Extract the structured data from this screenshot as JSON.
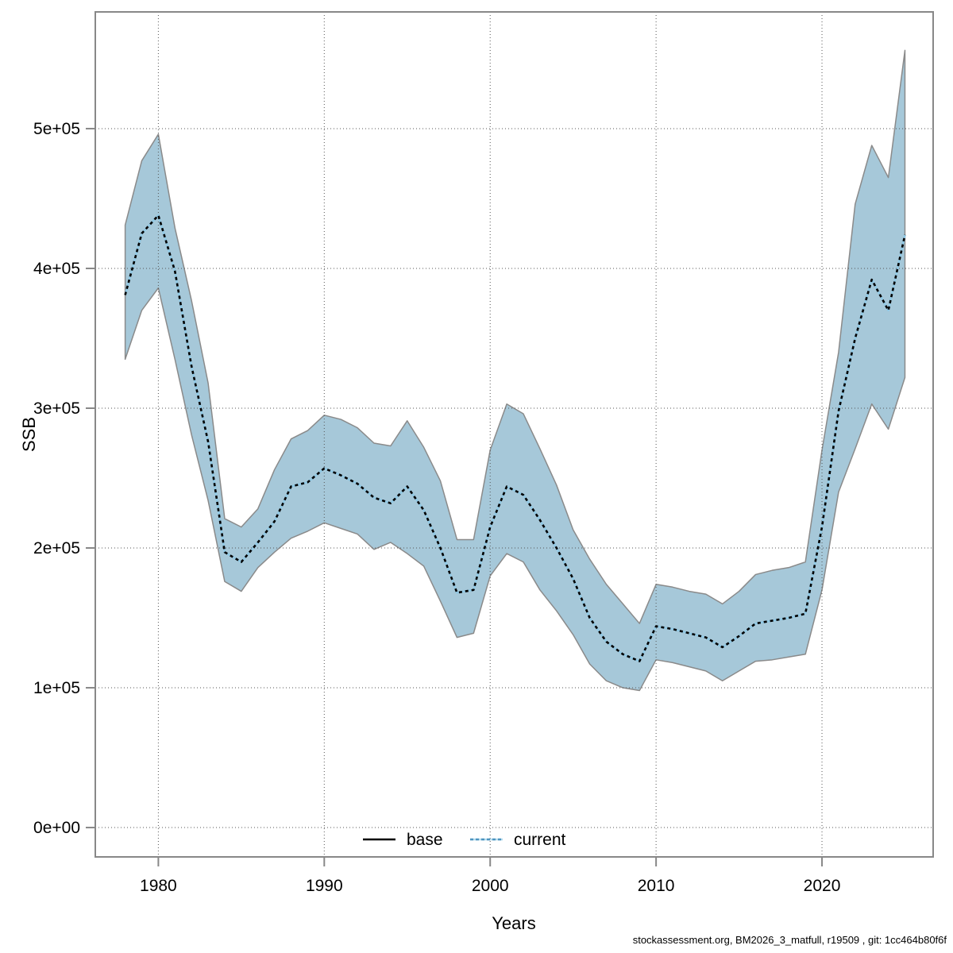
{
  "page": {
    "background": "#ffffff"
  },
  "labels": {
    "x_axis": "Years",
    "y_axis": "SSB"
  },
  "footer": {
    "text": "stockassessment.org, BM2026_3_matfull, r19509 , git: 1cc464b80f6f"
  },
  "colors": {
    "band_fill": "#a6c8d9",
    "band_border": "#8a8a8a",
    "median_dash": "#000000",
    "median_under": "#90c8e4",
    "grid": "#555555",
    "frame": "#888888",
    "legend_base": "#000000",
    "legend_current": "#4e94bf",
    "legend_current_under": "#b6dcee"
  },
  "legend": {
    "items": [
      {
        "label": "base",
        "line": "solid",
        "color": "#000000"
      },
      {
        "label": "current",
        "line": "dotted",
        "color": "#4e94bf"
      }
    ]
  },
  "chart_data": {
    "type": "line",
    "subtype": "median-with-confidence-ribbon",
    "title": "",
    "xlabel": "Years",
    "ylabel": "SSB",
    "grid": true,
    "legend_position": "bottom-center",
    "xlim": [
      1976.2,
      2026.7
    ],
    "ylim": [
      -21000,
      583500
    ],
    "x_ticks": {
      "values": [
        1980,
        1990,
        2000,
        2010,
        2020
      ],
      "labels": [
        "1980",
        "1990",
        "2000",
        "2010",
        "2020"
      ]
    },
    "y_ticks": {
      "values": [
        0,
        100000,
        200000,
        300000,
        400000,
        500000
      ],
      "labels": [
        "0e+00",
        "1e+05",
        "2e+05",
        "3e+05",
        "4e+05",
        "5e+05"
      ]
    },
    "x": [
      1978,
      1979,
      1980,
      1981,
      1982,
      1983,
      1984,
      1985,
      1986,
      1987,
      1988,
      1989,
      1990,
      1991,
      1992,
      1993,
      1994,
      1995,
      1996,
      1997,
      1998,
      1999,
      2000,
      2001,
      2002,
      2003,
      2004,
      2005,
      2006,
      2007,
      2008,
      2009,
      2010,
      2011,
      2012,
      2013,
      2014,
      2015,
      2016,
      2017,
      2018,
      2019,
      2020,
      2021,
      2022,
      2023,
      2024,
      2025
    ],
    "series": [
      {
        "name": "current",
        "role": "median",
        "values": [
          381000,
          425000,
          438000,
          398000,
          330000,
          276000,
          197000,
          190000,
          204000,
          219000,
          244000,
          247000,
          257000,
          252000,
          246000,
          236000,
          232000,
          244000,
          227000,
          200000,
          168000,
          170000,
          215000,
          244000,
          238000,
          220000,
          200000,
          178000,
          150000,
          133000,
          124000,
          119000,
          144000,
          142000,
          139000,
          136000,
          129000,
          137000,
          146000,
          148000,
          150000,
          153000,
          215000,
          298000,
          350000,
          392000,
          370000,
          424000
        ]
      },
      {
        "name": "current",
        "role": "ci_lower",
        "values": [
          335000,
          370000,
          386000,
          335000,
          281000,
          234000,
          176000,
          169000,
          186000,
          197000,
          207000,
          212000,
          218000,
          214000,
          210000,
          199000,
          204000,
          196000,
          187000,
          162000,
          136000,
          139000,
          180000,
          196000,
          190000,
          170000,
          155000,
          138000,
          117000,
          105000,
          100000,
          98000,
          120000,
          118000,
          115000,
          112000,
          105000,
          112000,
          119000,
          120000,
          122000,
          124000,
          170000,
          240000,
          271000,
          303000,
          285000,
          322000
        ]
      },
      {
        "name": "current",
        "role": "ci_upper",
        "values": [
          431000,
          477000,
          496000,
          429000,
          377000,
          318000,
          221000,
          215000,
          228000,
          256000,
          278000,
          284000,
          295000,
          292000,
          286000,
          275000,
          273000,
          291000,
          272000,
          248000,
          206000,
          206000,
          270000,
          303000,
          296000,
          271000,
          245000,
          213000,
          192000,
          174000,
          160000,
          146000,
          174000,
          172000,
          169000,
          167000,
          160000,
          169000,
          181000,
          184000,
          186000,
          190000,
          270000,
          340000,
          446000,
          488000,
          465000,
          556000
        ]
      }
    ]
  }
}
